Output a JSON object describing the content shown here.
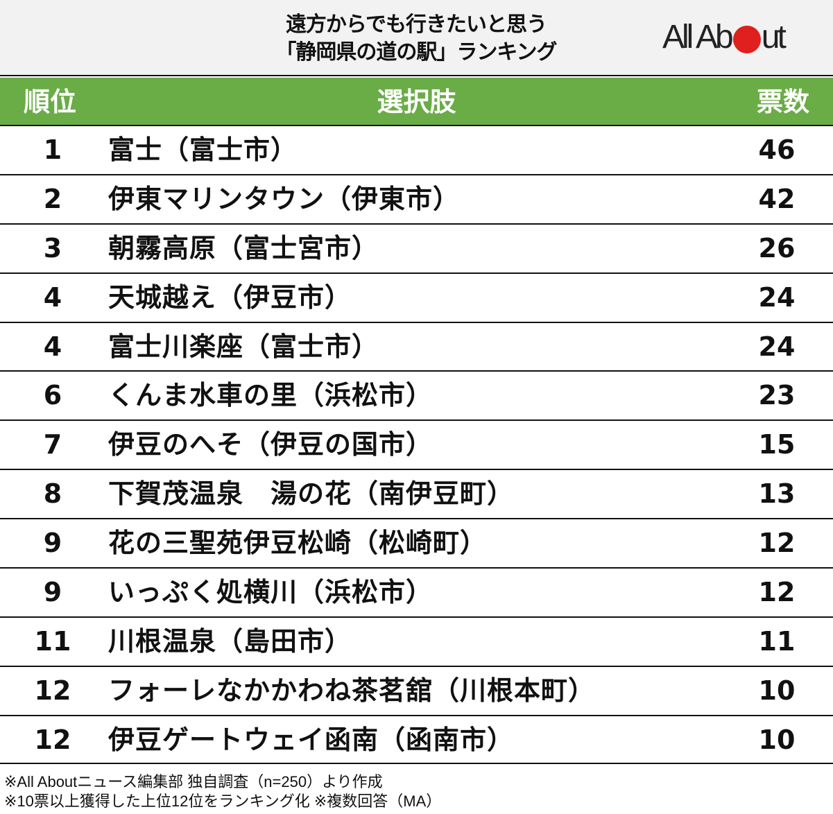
{
  "header": {
    "title_line1": "遠方からでも行きたいと思う",
    "title_line2": "「静岡県の道の駅」ランキング",
    "logo": {
      "text_before": "All Ab",
      "text_after": "ut",
      "dot_color": "#e0201e"
    }
  },
  "table": {
    "header_color": "#6aac46",
    "columns": {
      "rank": "順位",
      "choice": "選択肢",
      "votes": "票数"
    },
    "rows": [
      {
        "rank": "1",
        "choice": "富士（富士市）",
        "votes": "46"
      },
      {
        "rank": "2",
        "choice": "伊東マリンタウン（伊東市）",
        "votes": "42"
      },
      {
        "rank": "3",
        "choice": "朝霧高原（富士宮市）",
        "votes": "26"
      },
      {
        "rank": "4",
        "choice": "天城越え（伊豆市）",
        "votes": "24"
      },
      {
        "rank": "4",
        "choice": "富士川楽座（富士市）",
        "votes": "24"
      },
      {
        "rank": "6",
        "choice": "くんま水車の里（浜松市）",
        "votes": "23"
      },
      {
        "rank": "7",
        "choice": "伊豆のへそ（伊豆の国市）",
        "votes": "15"
      },
      {
        "rank": "8",
        "choice": "下賀茂温泉　湯の花（南伊豆町）",
        "votes": "13"
      },
      {
        "rank": "9",
        "choice": "花の三聖苑伊豆松崎（松崎町）",
        "votes": "12"
      },
      {
        "rank": "9",
        "choice": "いっぷく処横川（浜松市）",
        "votes": "12"
      },
      {
        "rank": "11",
        "choice": "川根温泉（島田市）",
        "votes": "11"
      },
      {
        "rank": "12",
        "choice": "フォーレなかかわね茶茗舘（川根本町）",
        "votes": "10"
      },
      {
        "rank": "12",
        "choice": "伊豆ゲートウェイ函南（函南市）",
        "votes": "10"
      }
    ]
  },
  "footer": {
    "note1": "※All Aboutニュース編集部 独自調査（n=250）より作成",
    "note2": "※10票以上獲得した上位12位をランキング化 ※複数回答（MA）"
  },
  "chart_data": {
    "type": "table",
    "title": "遠方からでも行きたいと思う「静岡県の道の駅」ランキング",
    "columns": [
      "順位",
      "選択肢",
      "票数"
    ],
    "categories": [
      "富士（富士市）",
      "伊東マリンタウン（伊東市）",
      "朝霧高原（富士宮市）",
      "天城越え（伊豆市）",
      "富士川楽座（富士市）",
      "くんま水車の里（浜松市）",
      "伊豆のへそ（伊豆の国市）",
      "下賀茂温泉　湯の花（南伊豆町）",
      "花の三聖苑伊豆松崎（松崎町）",
      "いっぷく処横川（浜松市）",
      "川根温泉（島田市）",
      "フォーレなかかわね茶茗舘（川根本町）",
      "伊豆ゲートウェイ函南（函南市）"
    ],
    "ranks": [
      1,
      2,
      3,
      4,
      4,
      6,
      7,
      8,
      9,
      9,
      11,
      12,
      12
    ],
    "values": [
      46,
      42,
      26,
      24,
      24,
      23,
      15,
      13,
      12,
      12,
      11,
      10,
      10
    ],
    "notes": [
      "※All Aboutニュース編集部 独自調査（n=250）より作成",
      "※10票以上獲得した上位12位をランキング化 ※複数回答（MA）"
    ]
  }
}
